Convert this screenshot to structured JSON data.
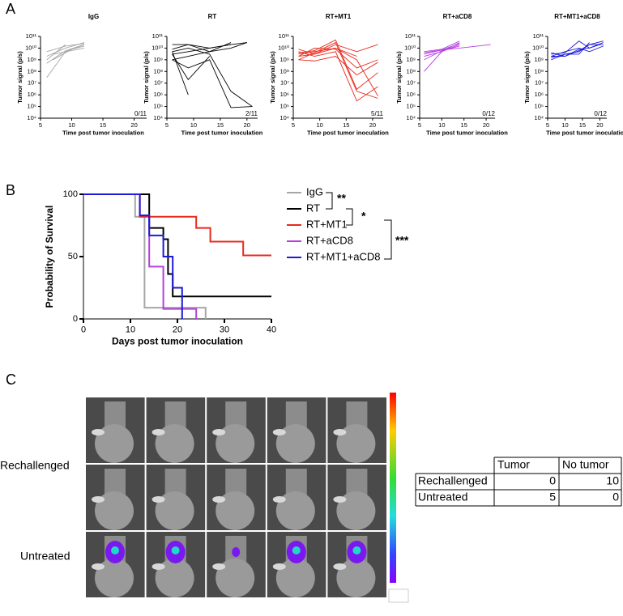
{
  "panel_labels": [
    "A",
    "B",
    "C"
  ],
  "chart_data": [
    {
      "type": "line",
      "title": "IgG",
      "x_label": "Time post tumor inoculation",
      "y_label": "Tumor signal (p/s)",
      "annotation": "0/11",
      "log_scale": true,
      "color": "#a6a6a6",
      "xlim": [
        5,
        22
      ],
      "xticks": [
        5,
        10,
        15,
        20
      ],
      "ylim": [
        10000,
        100000000000
      ],
      "yticks": [
        {
          "value": 10000,
          "label": "10⁴"
        },
        {
          "value": 100000,
          "label": "10⁵"
        },
        {
          "value": 1000000,
          "label": "10⁶"
        },
        {
          "value": 10000000,
          "label": "10⁷"
        },
        {
          "value": 100000000,
          "label": "10⁸"
        },
        {
          "value": 1000000000,
          "label": "10⁹"
        },
        {
          "value": 10000000000,
          "label": "10¹⁰"
        },
        {
          "value": 100000000000,
          "label": "10¹¹"
        }
      ],
      "series": [
        {
          "x": [
            6,
            9,
            12
          ],
          "values": [
            30000000.0,
            5000000000.0,
            20000000000.0
          ]
        },
        {
          "x": [
            6,
            9,
            12
          ],
          "values": [
            2000000000.0,
            10000000000.0,
            30000000000.0
          ]
        },
        {
          "x": [
            6,
            9,
            12
          ],
          "values": [
            500000000.0,
            6000000000.0,
            20000000000.0
          ]
        },
        {
          "x": [
            7,
            10,
            12
          ],
          "values": [
            1000000000.0,
            8000000000.0,
            15000000000.0
          ]
        },
        {
          "x": [
            6,
            9,
            12
          ],
          "values": [
            5000000000.0,
            15000000000.0,
            25000000000.0
          ]
        },
        {
          "x": [
            6,
            9
          ],
          "values": [
            1000000000.0,
            20000000000.0
          ]
        },
        {
          "x": [
            7,
            12
          ],
          "values": [
            3000000000.0,
            10000000000.0
          ]
        }
      ]
    },
    {
      "type": "line",
      "title": "RT",
      "x_label": "Time post tumor inoculation",
      "y_label": "Tumor signal (p/s)",
      "annotation": "2/11",
      "log_scale": true,
      "color": "#000000",
      "xlim": [
        5,
        22
      ],
      "xticks": [
        5,
        10,
        15,
        20
      ],
      "ylim": [
        10000,
        100000000000
      ],
      "yticks": [
        {
          "value": 10000,
          "label": "10⁴"
        },
        {
          "value": 100000,
          "label": "10⁵"
        },
        {
          "value": 1000000,
          "label": "10⁶"
        },
        {
          "value": 10000000,
          "label": "10⁷"
        },
        {
          "value": 100000000,
          "label": "10⁸"
        },
        {
          "value": 1000000000,
          "label": "10⁹"
        },
        {
          "value": 10000000000,
          "label": "10¹⁰"
        },
        {
          "value": 100000000000,
          "label": "10¹¹"
        }
      ],
      "series": [
        {
          "x": [
            6,
            9,
            13,
            17
          ],
          "values": [
            1000000000.0,
            2000000000.0,
            5000000000.0,
            30000000000.0
          ]
        },
        {
          "x": [
            6,
            9,
            13,
            17,
            20
          ],
          "values": [
            3000000000.0,
            5000000000.0,
            10000000000.0,
            20000000000.0,
            30000000000.0
          ]
        },
        {
          "x": [
            6,
            9,
            13,
            17,
            21
          ],
          "values": [
            5000000000.0,
            10000000000.0,
            3000000000.0,
            2000000.0,
            100000.0
          ]
        },
        {
          "x": [
            6,
            9,
            13,
            17,
            21
          ],
          "values": [
            1000000000.0,
            200000000.0,
            1000000000.0,
            80000.0,
            100000.0
          ]
        },
        {
          "x": [
            6,
            9
          ],
          "values": [
            5000000000.0,
            1000000.0
          ]
        },
        {
          "x": [
            6,
            9,
            13
          ],
          "values": [
            3000000000.0,
            20000000.0,
            2000000000.0
          ]
        },
        {
          "x": [
            6,
            9,
            13,
            17
          ],
          "values": [
            8000000000.0,
            20000000000.0,
            10000000000.0,
            20000000000.0
          ]
        },
        {
          "x": [
            6,
            9,
            13,
            17,
            20
          ],
          "values": [
            20000000000.0,
            20000000000.0,
            5000000000.0,
            10000000000.0,
            30000000000.0
          ]
        }
      ]
    },
    {
      "type": "line",
      "title": "RT+MT1",
      "x_label": "Time post tumor inoculation",
      "y_label": "Tumor signal (p/s)",
      "annotation": "5/11",
      "log_scale": true,
      "color": "#e8291c",
      "xlim": [
        5,
        22
      ],
      "xticks": [
        5,
        10,
        15,
        20
      ],
      "ylim": [
        10000,
        100000000000
      ],
      "yticks": [
        {
          "value": 10000,
          "label": "10⁴"
        },
        {
          "value": 100000,
          "label": "10⁵"
        },
        {
          "value": 1000000,
          "label": "10⁶"
        },
        {
          "value": 10000000,
          "label": "10⁷"
        },
        {
          "value": 100000000,
          "label": "10⁸"
        },
        {
          "value": 1000000000,
          "label": "10⁹"
        },
        {
          "value": 10000000000,
          "label": "10¹⁰"
        },
        {
          "value": 100000000000,
          "label": "10¹¹"
        }
      ],
      "series": [
        {
          "x": [
            6,
            9,
            13,
            17,
            21
          ],
          "values": [
            2000000000.0,
            3000000000.0,
            20000000000.0,
            5000000000.0,
            20000000000.0
          ]
        },
        {
          "x": [
            6,
            9,
            13,
            17,
            21
          ],
          "values": [
            3000000000.0,
            5000000000.0,
            10000000000.0,
            1000000000.0,
            800000.0
          ]
        },
        {
          "x": [
            6,
            9,
            13,
            17,
            21
          ],
          "values": [
            1000000000.0,
            4000000000.0,
            30000000000.0,
            2000000.0,
            500000.0
          ]
        },
        {
          "x": [
            6,
            9,
            13,
            17,
            21
          ],
          "values": [
            5000000000.0,
            2000000000.0,
            5000000000.0,
            300000.0,
            5000000.0
          ]
        },
        {
          "x": [
            6,
            9,
            13,
            17,
            21
          ],
          "values": [
            2000000000.0,
            10000000000.0,
            8000000000.0,
            200000000.0,
            1000000000.0
          ]
        },
        {
          "x": [
            6,
            9,
            13,
            17,
            21
          ],
          "values": [
            4000000000.0,
            6000000000.0,
            50000000000.0,
            3000000.0,
            80000000.0
          ]
        },
        {
          "x": [
            6,
            9,
            13,
            17
          ],
          "values": [
            8000000000.0,
            3000000000.0,
            10000000000.0,
            2000000000.0
          ]
        },
        {
          "x": [
            6,
            9,
            13,
            17,
            21
          ],
          "values": [
            1000000000.0,
            800000000.0,
            2000000000.0,
            50000000.0,
            600000000.0
          ]
        }
      ]
    },
    {
      "type": "line",
      "title": "RT+aCD8",
      "x_label": "Time post tumor inoculation",
      "y_label": "Tumor signal (p/s)",
      "annotation": "0/12",
      "log_scale": true,
      "color": "#b33fe0",
      "xlim": [
        5,
        22
      ],
      "xticks": [
        5,
        10,
        15,
        20
      ],
      "ylim": [
        10000,
        100000000000
      ],
      "yticks": [
        {
          "value": 10000,
          "label": "10⁴"
        },
        {
          "value": 100000,
          "label": "10⁵"
        },
        {
          "value": 1000000,
          "label": "10⁶"
        },
        {
          "value": 10000000,
          "label": "10⁷"
        },
        {
          "value": 100000000,
          "label": "10⁸"
        },
        {
          "value": 1000000000,
          "label": "10⁹"
        },
        {
          "value": 10000000000,
          "label": "10¹⁰"
        },
        {
          "value": 100000000000,
          "label": "10¹¹"
        }
      ],
      "series": [
        {
          "x": [
            6,
            10,
            14
          ],
          "values": [
            100000000.0,
            5000000000.0,
            30000000000.0
          ]
        },
        {
          "x": [
            6,
            10,
            14
          ],
          "values": [
            2000000000.0,
            5000000000.0,
            20000000000.0
          ]
        },
        {
          "x": [
            6,
            10,
            14,
            21
          ],
          "values": [
            3000000000.0,
            7000000000.0,
            10000000000.0,
            20000000000.0
          ]
        },
        {
          "x": [
            6,
            10,
            14
          ],
          "values": [
            5000000000.0,
            8000000000.0,
            40000000000.0
          ]
        },
        {
          "x": [
            6,
            10,
            14
          ],
          "values": [
            1000000000.0,
            6000000000.0,
            15000000000.0
          ]
        },
        {
          "x": [
            6,
            10,
            14
          ],
          "values": [
            4000000000.0,
            7000000000.0,
            25000000000.0
          ]
        }
      ]
    },
    {
      "type": "line",
      "title": "RT+MT1+aCD8",
      "x_label": "Time post tumor inoculation",
      "y_label": "Tumor signal (p/s)",
      "annotation": "0/12",
      "log_scale": true,
      "color": "#1d1bd6",
      "xlim": [
        5,
        22
      ],
      "xticks": [
        5,
        10,
        15,
        20
      ],
      "ylim": [
        10000,
        100000000000
      ],
      "yticks": [
        {
          "value": 10000,
          "label": "10⁴"
        },
        {
          "value": 100000,
          "label": "10⁵"
        },
        {
          "value": 1000000,
          "label": "10⁶"
        },
        {
          "value": 10000000,
          "label": "10⁷"
        },
        {
          "value": 100000000,
          "label": "10⁸"
        },
        {
          "value": 1000000000,
          "label": "10⁹"
        },
        {
          "value": 10000000000,
          "label": "10¹⁰"
        },
        {
          "value": 100000000000,
          "label": "10¹¹"
        }
      ],
      "series": [
        {
          "x": [
            6,
            10,
            14,
            17,
            21
          ],
          "values": [
            1000000000.0,
            3000000000.0,
            5000000000.0,
            20000000000.0,
            40000000000.0
          ]
        },
        {
          "x": [
            6,
            10,
            14,
            17,
            21
          ],
          "values": [
            2000000000.0,
            2000000000.0,
            8000000000.0,
            10000000000.0,
            30000000000.0
          ]
        },
        {
          "x": [
            6,
            10,
            14,
            17,
            20
          ],
          "values": [
            3000000000.0,
            4000000000.0,
            40000000000.0,
            10000000000.0,
            20000000000.0
          ]
        },
        {
          "x": [
            6,
            10,
            14,
            17
          ],
          "values": [
            1500000000.0,
            3000000000.0,
            3000000000.0,
            30000000000.0
          ]
        },
        {
          "x": [
            6,
            10,
            14,
            17,
            21
          ],
          "values": [
            2000000000.0,
            5000000000.0,
            10000000000.0,
            5000000000.0,
            15000000000.0
          ]
        },
        {
          "x": [
            6,
            10,
            14,
            17,
            21
          ],
          "values": [
            4000000000.0,
            2000000000.0,
            6000000000.0,
            20000000000.0,
            20000000000.0
          ]
        }
      ]
    },
    {
      "type": "line",
      "x_label": "Days post tumor inoculation",
      "y_label": "Probability of Survival",
      "log_scale": false,
      "legend": "right",
      "xlim": [
        0,
        40
      ],
      "xticks": [
        0,
        10,
        20,
        30,
        40
      ],
      "ylim": [
        0,
        100
      ],
      "yticks": [
        0,
        50,
        100
      ],
      "significance": [
        "**",
        "*",
        "***"
      ],
      "series": [
        {
          "name": "IgG",
          "color": "#a6a6a6",
          "x": [
            0,
            11,
            11,
            13,
            13,
            26,
            26
          ],
          "values": [
            100,
            100,
            82,
            82,
            9,
            9,
            0
          ]
        },
        {
          "name": "RT",
          "color": "#000000",
          "x": [
            0,
            14,
            14,
            17,
            17,
            18,
            18,
            19,
            19,
            40
          ],
          "values": [
            100,
            100,
            73,
            73,
            64,
            64,
            36,
            36,
            18,
            18
          ]
        },
        {
          "name": "RT+MT1",
          "color": "#e8291c",
          "x": [
            0,
            12,
            12,
            24,
            24,
            27,
            27,
            34,
            34,
            40
          ],
          "values": [
            100,
            100,
            82,
            82,
            73,
            73,
            62,
            62,
            51,
            51
          ]
        },
        {
          "name": "RT+aCD8",
          "color": "#b33fe0",
          "x": [
            0,
            12,
            12,
            14,
            14,
            17,
            17,
            24,
            24
          ],
          "values": [
            100,
            100,
            83,
            83,
            42,
            42,
            8,
            8,
            0
          ]
        },
        {
          "name": "RT+MT1+aCD8",
          "color": "#1d1bd6",
          "x": [
            0,
            12,
            12,
            14,
            14,
            17,
            17,
            19,
            19,
            21,
            21
          ],
          "values": [
            100,
            100,
            83,
            83,
            67,
            67,
            50,
            50,
            25,
            25,
            0
          ]
        }
      ]
    }
  ],
  "row_labels": [
    "Rechallenged",
    "Untreated"
  ],
  "table": {
    "header": [
      "Tumor",
      "No tumor"
    ],
    "rows": [
      [
        "Rechallenged",
        0,
        10
      ],
      [
        "Untreated",
        5,
        0
      ]
    ]
  }
}
